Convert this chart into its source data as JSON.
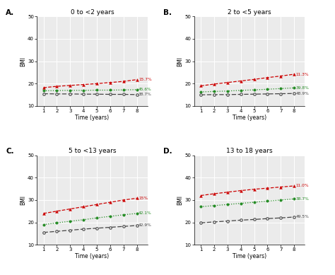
{
  "panels": [
    {
      "label": "A.",
      "title": "0 to <2 years",
      "x": [
        1,
        2,
        3,
        4,
        5,
        6,
        7,
        8
      ],
      "red_y": [
        18.2,
        18.8,
        19.2,
        19.6,
        20.0,
        20.5,
        21.0,
        21.8
      ],
      "green_y": [
        16.8,
        16.9,
        17.0,
        17.0,
        17.1,
        17.1,
        17.2,
        17.3
      ],
      "black_y": [
        15.5,
        15.4,
        15.4,
        15.3,
        15.3,
        15.2,
        15.2,
        15.1
      ],
      "red_pct": "15.7%",
      "green_pct": "45.6%",
      "black_pct": "38.7%",
      "ylim": [
        10,
        50
      ],
      "yticks": [
        10,
        20,
        30,
        40,
        50
      ]
    },
    {
      "label": "B.",
      "title": "2 to <5 years",
      "x": [
        1,
        2,
        3,
        4,
        5,
        6,
        7,
        8
      ],
      "red_y": [
        19.0,
        19.8,
        20.5,
        21.2,
        21.9,
        22.7,
        23.4,
        24.2
      ],
      "green_y": [
        16.3,
        16.5,
        16.7,
        17.0,
        17.2,
        17.5,
        17.8,
        18.1
      ],
      "black_y": [
        15.0,
        15.1,
        15.1,
        15.2,
        15.3,
        15.4,
        15.5,
        15.6
      ],
      "red_pct": "11.3%",
      "green_pct": "39.8%",
      "black_pct": "48.9%",
      "ylim": [
        10,
        50
      ],
      "yticks": [
        10,
        20,
        30,
        40,
        50
      ]
    },
    {
      "label": "C.",
      "title": "5 to <13 years",
      "x": [
        1,
        2,
        3,
        4,
        5,
        6,
        7,
        8
      ],
      "red_y": [
        24.0,
        25.0,
        26.0,
        27.0,
        28.0,
        29.0,
        30.0,
        30.8
      ],
      "green_y": [
        19.0,
        19.8,
        20.5,
        21.2,
        22.0,
        22.7,
        23.4,
        24.0
      ],
      "black_y": [
        15.5,
        16.0,
        16.5,
        17.0,
        17.4,
        17.8,
        18.2,
        18.6
      ],
      "red_pct": "15%",
      "green_pct": "42.1%",
      "black_pct": "42.9%",
      "ylim": [
        10,
        50
      ],
      "yticks": [
        10,
        20,
        30,
        40,
        50
      ]
    },
    {
      "label": "D.",
      "title": "13 to 18 years",
      "x": [
        1,
        2,
        3,
        4,
        5,
        6,
        7,
        8
      ],
      "red_y": [
        32.0,
        32.8,
        33.5,
        34.2,
        34.8,
        35.3,
        35.8,
        36.3
      ],
      "green_y": [
        27.0,
        27.5,
        28.0,
        28.5,
        29.0,
        29.5,
        30.0,
        30.5
      ],
      "black_y": [
        19.8,
        20.2,
        20.6,
        21.0,
        21.3,
        21.7,
        22.0,
        22.4
      ],
      "red_pct": "11.0%",
      "green_pct": "38.7%",
      "black_pct": "49.5%",
      "ylim": [
        10,
        50
      ],
      "yticks": [
        10,
        20,
        30,
        40,
        50
      ]
    }
  ],
  "red_color": "#cc0000",
  "green_color": "#228B22",
  "black_color": "#444444",
  "bg_color": "#ebebeb",
  "grid_color": "#ffffff",
  "xlabel": "Time (years)",
  "ylabel": "BMI",
  "figsize": [
    4.74,
    3.89
  ],
  "dpi": 100
}
